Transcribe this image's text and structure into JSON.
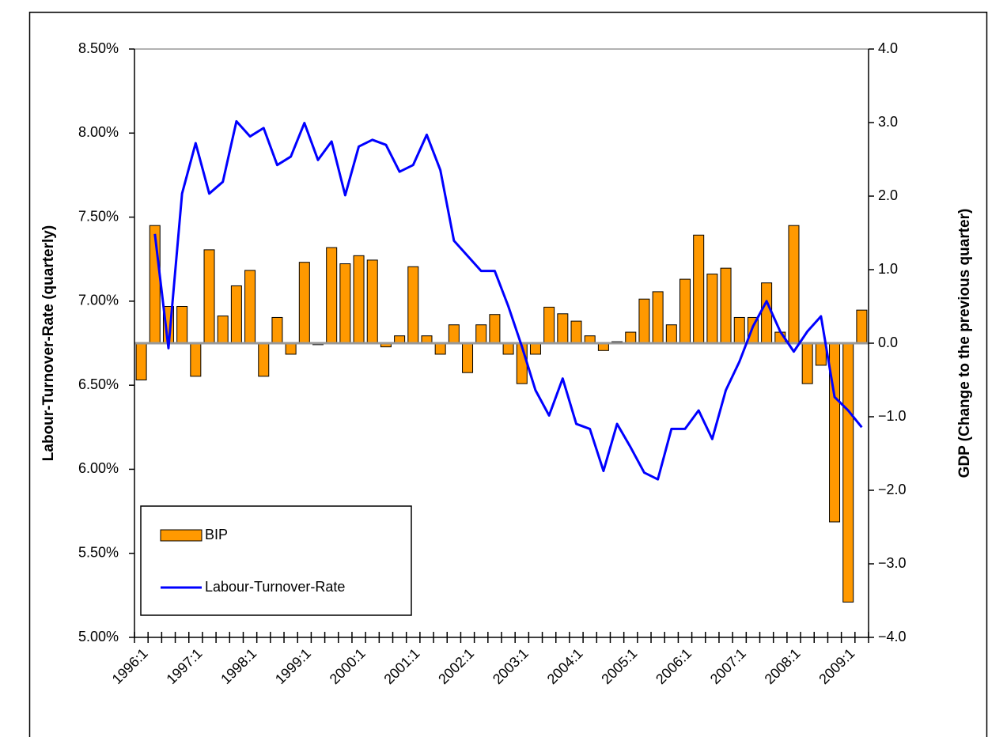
{
  "chart_data": {
    "type": "bar-line",
    "ylabel": "Labour-Turnover-Rate  (quarterly)",
    "y2label": "GDP (Change to the previous quarter)",
    "categories": [
      "1996:1",
      null,
      null,
      null,
      "1997:1",
      null,
      null,
      null,
      "1998:1",
      null,
      null,
      null,
      "1999:1",
      null,
      null,
      null,
      "2000:1",
      null,
      null,
      null,
      "2001:1",
      null,
      null,
      null,
      "2002:1",
      null,
      null,
      null,
      "2003:1",
      null,
      null,
      null,
      "2004:1",
      null,
      null,
      null,
      "2005:1",
      null,
      null,
      null,
      "2006:1",
      null,
      null,
      null,
      "2007:1",
      null,
      null,
      null,
      "2008:1",
      null,
      null,
      null,
      "2009:1",
      null
    ],
    "series": [
      {
        "name": "BIP",
        "type": "bar",
        "axis": "y2",
        "color": "#ff9900",
        "values": [
          -0.5,
          1.6,
          0.5,
          0.5,
          -0.45,
          1.27,
          0.37,
          0.78,
          0.99,
          -0.45,
          0.35,
          -0.15,
          1.1,
          -0.02,
          1.3,
          1.08,
          1.19,
          1.13,
          -0.05,
          0.1,
          1.04,
          0.1,
          -0.15,
          0.25,
          -0.4,
          0.25,
          0.39,
          -0.15,
          -0.55,
          -0.15,
          0.49,
          0.4,
          0.3,
          0.1,
          -0.1,
          0.02,
          0.15,
          0.6,
          0.7,
          0.25,
          0.87,
          1.47,
          0.94,
          1.02,
          0.35,
          0.35,
          0.82,
          0.15,
          1.6,
          -0.55,
          -0.3,
          -2.43,
          -3.52,
          0.45
        ]
      },
      {
        "name": "Labour-Turnover-Rate",
        "type": "line",
        "axis": "y",
        "color": "#0000ff",
        "values": [
          null,
          7.4,
          6.72,
          7.64,
          7.94,
          7.64,
          7.71,
          8.07,
          7.98,
          8.03,
          7.81,
          7.86,
          8.06,
          7.84,
          7.95,
          7.63,
          7.92,
          7.96,
          7.93,
          7.77,
          7.81,
          7.99,
          7.78,
          7.36,
          7.27,
          7.18,
          7.18,
          6.97,
          6.73,
          6.47,
          6.32,
          6.54,
          6.27,
          6.24,
          5.99,
          6.27,
          6.13,
          5.98,
          5.94,
          6.24,
          6.24,
          6.35,
          6.18,
          6.47,
          6.64,
          6.85,
          7.0,
          6.82,
          6.7,
          6.82,
          6.91,
          6.43,
          6.35,
          6.25
        ]
      }
    ],
    "ylim": [
      5.0,
      8.5
    ],
    "yticks": [
      {
        "value": 5.0,
        "label": "5.00%"
      },
      {
        "value": 5.5,
        "label": "5.50%"
      },
      {
        "value": 6.0,
        "label": "6.00%"
      },
      {
        "value": 6.5,
        "label": "6.50%"
      },
      {
        "value": 7.0,
        "label": "7.00%"
      },
      {
        "value": 7.5,
        "label": "7.50%"
      },
      {
        "value": 8.0,
        "label": "8.00%"
      },
      {
        "value": 8.5,
        "label": "8.50%"
      }
    ],
    "y2lim": [
      -4.0,
      4.0
    ],
    "y2ticks": [
      {
        "value": -4.0,
        "label": "−4.0"
      },
      {
        "value": -3.0,
        "label": "−3.0"
      },
      {
        "value": -2.0,
        "label": "−2.0"
      },
      {
        "value": -1.0,
        "label": "−1.0"
      },
      {
        "value": 0,
        "label": "0.0"
      },
      {
        "value": 1.0,
        "label": "1.0"
      },
      {
        "value": 2.0,
        "label": "2.0"
      },
      {
        "value": 3.0,
        "label": "3.0"
      },
      {
        "value": 4.0,
        "label": "4.0"
      }
    ],
    "legend": "lower-left"
  }
}
